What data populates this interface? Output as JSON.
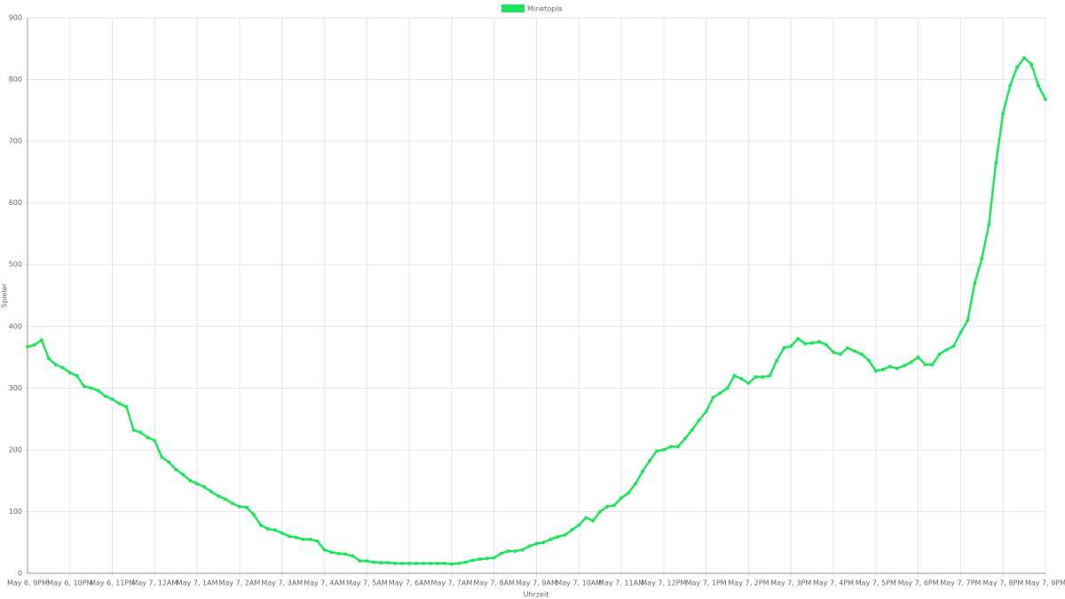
{
  "chart_data": {
    "type": "line",
    "legend_position": "top",
    "ylabel": "Spieler",
    "xlabel": "Uhrzeit",
    "grid": true,
    "ylim": [
      0,
      900
    ],
    "yticks": [
      0,
      100,
      200,
      300,
      400,
      500,
      600,
      700,
      800,
      900
    ],
    "categories": [
      "May 6, 9PM",
      null,
      null,
      null,
      null,
      null,
      "May 6, 10PM",
      null,
      null,
      null,
      null,
      null,
      "May 6, 11PM",
      null,
      null,
      null,
      null,
      null,
      "May 7, 12AM",
      null,
      null,
      null,
      null,
      null,
      "May 7, 1AM",
      null,
      null,
      null,
      null,
      null,
      "May 7, 2AM",
      null,
      null,
      null,
      null,
      null,
      "May 7, 3AM",
      null,
      null,
      null,
      null,
      null,
      "May 7, 4AM",
      null,
      null,
      null,
      null,
      null,
      "May 7, 5AM",
      null,
      null,
      null,
      null,
      null,
      "May 7, 6AM",
      null,
      null,
      null,
      null,
      null,
      "May 7, 7AM",
      null,
      null,
      null,
      null,
      null,
      "May 7, 8AM",
      null,
      null,
      null,
      null,
      null,
      "May 7, 9AM",
      null,
      null,
      null,
      null,
      null,
      "May 7, 10AM",
      null,
      null,
      null,
      null,
      null,
      "May 7, 11AM",
      null,
      null,
      null,
      null,
      null,
      "May 7, 12PM",
      null,
      null,
      null,
      null,
      null,
      "May 7, 1PM",
      null,
      null,
      null,
      null,
      null,
      "May 7, 2PM",
      null,
      null,
      null,
      null,
      null,
      "May 7, 3PM",
      null,
      null,
      null,
      null,
      null,
      "May 7, 4PM",
      null,
      null,
      null,
      null,
      null,
      "May 7, 5PM",
      null,
      null,
      null,
      null,
      null,
      "May 7, 6PM",
      null,
      null,
      null,
      null,
      null,
      "May 7, 7PM",
      null,
      null,
      null,
      null,
      null,
      "May 7, 8PM",
      null,
      null,
      null,
      null,
      null,
      "May 7, 9PM"
    ],
    "series": [
      {
        "name": "Minetopia",
        "color": "#1ee65a",
        "values": [
          367,
          370,
          378,
          348,
          338,
          333,
          325,
          320,
          303,
          300,
          296,
          287,
          282,
          275,
          270,
          232,
          228,
          220,
          215,
          188,
          180,
          168,
          160,
          150,
          145,
          140,
          132,
          125,
          120,
          113,
          108,
          107,
          95,
          78,
          72,
          70,
          65,
          60,
          58,
          55,
          55,
          52,
          38,
          34,
          32,
          31,
          28,
          20,
          20,
          18,
          17,
          17,
          16,
          16,
          16,
          16,
          16,
          16,
          16,
          16,
          15,
          16,
          18,
          21,
          23,
          24,
          25,
          32,
          36,
          36,
          38,
          44,
          48,
          50,
          55,
          59,
          62,
          70,
          78,
          90,
          85,
          100,
          108,
          110,
          122,
          130,
          145,
          165,
          182,
          198,
          200,
          205,
          205,
          218,
          232,
          248,
          262,
          285,
          292,
          300,
          320,
          315,
          308,
          318,
          318,
          320,
          345,
          365,
          368,
          380,
          372,
          373,
          375,
          370,
          358,
          355,
          365,
          360,
          355,
          345,
          328,
          330,
          335,
          332,
          336,
          342,
          350,
          338,
          338,
          355,
          362,
          368,
          390,
          410,
          470,
          510,
          565,
          665,
          745,
          790,
          820,
          835,
          825,
          790,
          768
        ]
      }
    ]
  }
}
